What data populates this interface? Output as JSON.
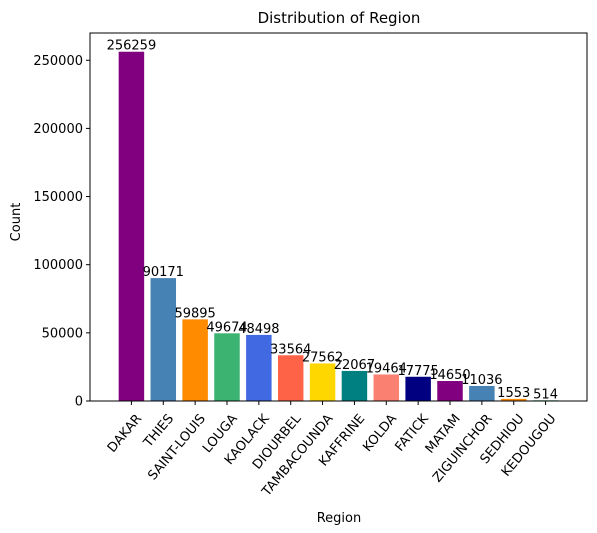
{
  "chart_data": {
    "type": "bar",
    "title": "Distribution of Region",
    "xlabel": "Region",
    "ylabel": "Count",
    "ylim": [
      0,
      270000
    ],
    "yticks": [
      0,
      50000,
      100000,
      150000,
      200000,
      250000
    ],
    "grid": false,
    "categories": [
      "DAKAR",
      "THIES",
      "SAINT-LOUIS",
      "LOUGA",
      "KAOLACK",
      "DIOURBEL",
      "TAMBACOUNDA",
      "KAFFRINE",
      "KOLDA",
      "FATICK",
      "MATAM",
      "ZIGUINCHOR",
      "SEDHIOU",
      "KEDOUGOU"
    ],
    "values": [
      256259,
      90171,
      59895,
      49674,
      48498,
      33564,
      27562,
      22067,
      19464,
      17775,
      14650,
      11036,
      1553,
      514
    ],
    "value_labels": [
      "256259",
      "90171",
      "59895",
      "49674",
      "48498",
      "33564",
      "27562",
      "22067",
      "19464",
      "17775",
      "14650",
      "11036",
      "1553",
      "514"
    ],
    "colors": [
      "#800080",
      "#4682b4",
      "#ff8c00",
      "#3cb371",
      "#4169e1",
      "#ff6347",
      "#ffd700",
      "#008080",
      "#fa8072",
      "#000080",
      "#800080",
      "#4682b4",
      "#ff8c00",
      "#3cb371"
    ]
  }
}
